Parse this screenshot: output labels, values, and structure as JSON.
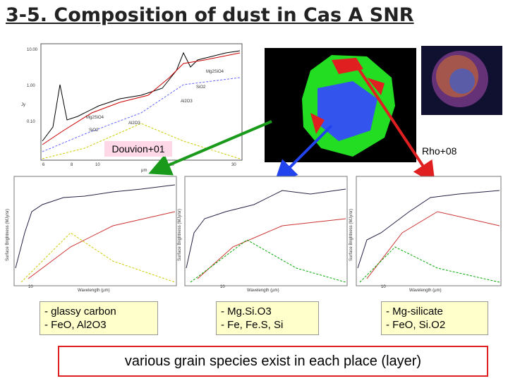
{
  "header": {
    "title": "3-5. Composition of dust in Cas A SNR"
  },
  "top_plot": {
    "labels": [
      "Mg2SiO4",
      "SiO2",
      "Al2O3",
      "Mg2SiO4",
      "SiO2",
      "Al2O3"
    ],
    "yticks": [
      "10.00",
      "1.00",
      "0.10"
    ],
    "xticks": [
      "6",
      "8",
      "10",
      "20",
      "30"
    ],
    "ylabel": "Jy",
    "xlabel": "μm"
  },
  "references": {
    "left": "Douvion+01",
    "right": "Rho+08"
  },
  "bottom_plots": {
    "xlabel": "Wavelength (μm)",
    "ylabel": "Surface Brightness (MJy/sr)",
    "xtick": "10"
  },
  "boxes": [
    {
      "lines": [
        "- glassy carbon",
        "- FeO, Al2O3"
      ]
    },
    {
      "lines": [
        "- Mg.Si.O3",
        "- Fe, Fe.S, Si"
      ]
    },
    {
      "lines": [
        "- Mg-silicate",
        "- FeO, Si.O2"
      ]
    }
  ],
  "conclusion": "various grain species exist in each place (layer)"
}
